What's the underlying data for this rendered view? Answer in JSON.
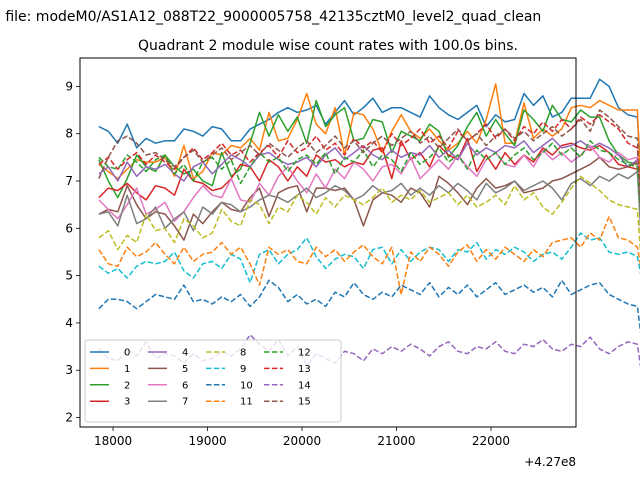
{
  "chart_data": {
    "type": "line",
    "suptitle": "n file: modeM0/AS1A12_088T22_9000005758_42135cztM0_level2_quad_clean",
    "title": "Quadrant 2 module wise count rates with 100.0s bins.",
    "xlabel": "",
    "ylabel": "",
    "x_offset_label": "+4.27e8",
    "xlim": [
      17650,
      22900
    ],
    "ylim": [
      1.8,
      9.6
    ],
    "xticks": [
      18000,
      19000,
      20000,
      21000,
      22000
    ],
    "xtick_labels": [
      "18000",
      "19000",
      "20000",
      "21000",
      "22000"
    ],
    "yticks": [
      2,
      3,
      4,
      5,
      6,
      7,
      8,
      9
    ],
    "ytick_labels": [
      "2",
      "3",
      "4",
      "5",
      "6",
      "7",
      "8",
      "9"
    ],
    "grid": false,
    "legend_placement": "lower-left",
    "legend_columns": 4,
    "x_start": 17850,
    "x_step": 100,
    "series": [
      {
        "name": "0",
        "color": "#1f77b4",
        "dash": "solid",
        "values": [
          8.15,
          8.05,
          7.8,
          8.2,
          7.7,
          7.9,
          7.8,
          7.85,
          7.85,
          8.1,
          8.05,
          7.95,
          8.15,
          8.1,
          7.85,
          7.85,
          8.1,
          8.2,
          8.3,
          8.45,
          8.55,
          8.45,
          8.5,
          8.6,
          8.2,
          8.45,
          8.7,
          8.4,
          8.55,
          8.75,
          8.45,
          8.55,
          8.55,
          8.45,
          8.35,
          8.8,
          8.55,
          8.4,
          8.3,
          8.45,
          8.6,
          8.15,
          8.4,
          8.25,
          8.3,
          8.85,
          8.6,
          8.8,
          8.35,
          8.45,
          8.75,
          8.75,
          8.75,
          9.15,
          9.0,
          8.55,
          8.4,
          8.35,
          5.15
        ]
      },
      {
        "name": "1",
        "color": "#ff7f0e",
        "dash": "solid",
        "values": [
          7.35,
          7.2,
          7.05,
          7.25,
          7.45,
          7.4,
          7.4,
          7.5,
          7.1,
          7.75,
          7.05,
          7.2,
          7.6,
          7.55,
          7.75,
          7.7,
          7.9,
          7.65,
          8.45,
          7.85,
          7.9,
          8.3,
          8.85,
          8.2,
          8.0,
          8.55,
          7.55,
          8.45,
          8.4,
          8.1,
          7.6,
          8.05,
          8.4,
          8.05,
          7.9,
          8.1,
          7.85,
          7.65,
          7.8,
          8.05,
          7.8,
          8.3,
          9.05,
          7.8,
          7.8,
          8.65,
          7.9,
          8.1,
          7.95,
          8.1,
          8.55,
          8.6,
          8.55,
          8.7,
          8.6,
          8.5,
          8.5,
          8.5,
          3.75
        ]
      },
      {
        "name": "2",
        "color": "#2ca02c",
        "dash": "solid",
        "values": [
          7.45,
          7.0,
          6.65,
          7.05,
          7.55,
          7.3,
          7.2,
          7.55,
          7.3,
          7.15,
          7.25,
          7.0,
          6.9,
          7.6,
          7.1,
          7.25,
          7.8,
          8.45,
          7.95,
          8.4,
          8.05,
          8.35,
          7.8,
          8.7,
          8.15,
          8.4,
          8.55,
          7.85,
          7.9,
          8.3,
          8.25,
          7.6,
          8.05,
          7.95,
          7.85,
          8.2,
          8.05,
          7.5,
          7.75,
          8.15,
          8.45,
          7.95,
          8.3,
          8.0,
          7.75,
          8.5,
          8.3,
          8.05,
          8.6,
          8.3,
          8.25,
          8.5,
          8.35,
          8.35,
          7.85,
          7.55,
          7.4,
          7.35,
          4.5
        ]
      },
      {
        "name": "3",
        "color": "#d62728",
        "dash": "solid",
        "values": [
          6.65,
          6.85,
          6.8,
          6.95,
          6.75,
          6.6,
          6.9,
          6.85,
          6.7,
          7.25,
          7.0,
          6.95,
          6.8,
          6.85,
          7.05,
          7.35,
          7.3,
          7.0,
          7.45,
          7.3,
          7.0,
          7.3,
          7.1,
          7.55,
          7.4,
          7.45,
          7.3,
          7.4,
          7.35,
          7.65,
          7.7,
          7.05,
          7.85,
          7.45,
          7.6,
          7.3,
          7.75,
          7.55,
          7.45,
          7.9,
          7.2,
          7.55,
          7.25,
          7.6,
          7.35,
          7.55,
          7.4,
          7.7,
          7.55,
          7.75,
          7.8,
          7.7,
          7.65,
          7.75,
          7.6,
          7.35,
          7.3,
          7.25,
          4.3
        ]
      },
      {
        "name": "4",
        "color": "#9467bd",
        "dash": "solid",
        "values": [
          7.15,
          7.3,
          7.0,
          7.4,
          7.1,
          7.3,
          7.25,
          7.35,
          7.15,
          7.0,
          7.3,
          7.4,
          7.15,
          7.35,
          7.55,
          7.45,
          7.3,
          7.55,
          7.6,
          7.45,
          7.35,
          7.4,
          7.5,
          7.3,
          7.55,
          7.7,
          7.45,
          7.6,
          7.75,
          7.55,
          7.45,
          7.65,
          7.5,
          7.6,
          7.55,
          7.75,
          7.5,
          7.65,
          7.45,
          7.8,
          7.55,
          7.7,
          7.6,
          7.75,
          7.7,
          7.85,
          7.6,
          7.75,
          7.9,
          7.7,
          7.75,
          7.85,
          7.7,
          7.8,
          7.7,
          7.55,
          7.3,
          7.45,
          4.55
        ]
      },
      {
        "name": "5",
        "color": "#8c564b",
        "dash": "solid",
        "values": [
          6.3,
          6.4,
          6.35,
          6.9,
          6.5,
          6.2,
          6.35,
          6.3,
          6.05,
          5.75,
          6.3,
          6.1,
          6.35,
          6.55,
          6.4,
          6.35,
          6.65,
          6.85,
          6.25,
          6.75,
          6.85,
          6.9,
          6.35,
          6.85,
          6.85,
          6.8,
          6.85,
          6.6,
          6.05,
          6.6,
          6.75,
          6.7,
          6.55,
          6.85,
          6.75,
          6.45,
          7.1,
          6.95,
          6.75,
          6.5,
          6.85,
          7.05,
          6.85,
          6.9,
          7.0,
          6.75,
          6.8,
          6.85,
          7.0,
          7.05,
          7.15,
          7.25,
          7.35,
          7.5,
          7.3,
          7.25,
          7.3,
          7.4,
          4.4
        ]
      },
      {
        "name": "6",
        "color": "#e377c2",
        "dash": "solid",
        "values": [
          6.6,
          6.4,
          6.2,
          6.5,
          6.85,
          6.3,
          6.4,
          6.55,
          6.15,
          6.35,
          6.65,
          6.9,
          6.7,
          6.65,
          7.05,
          6.6,
          6.55,
          6.95,
          6.7,
          7.1,
          7.3,
          7.0,
          6.75,
          7.15,
          6.85,
          7.25,
          7.05,
          7.4,
          7.25,
          7.0,
          7.3,
          7.35,
          7.15,
          7.5,
          7.05,
          7.25,
          7.45,
          7.25,
          7.55,
          7.3,
          7.1,
          7.45,
          7.6,
          7.35,
          7.3,
          7.55,
          7.3,
          7.65,
          7.45,
          7.6,
          7.4,
          7.55,
          7.75,
          7.5,
          7.4,
          7.6,
          7.45,
          7.5,
          4.7
        ]
      },
      {
        "name": "7",
        "color": "#7f7f7f",
        "dash": "solid",
        "values": [
          6.3,
          6.35,
          6.05,
          6.7,
          6.1,
          6.2,
          6.45,
          6.0,
          6.2,
          6.35,
          5.95,
          6.45,
          6.3,
          6.55,
          6.5,
          6.35,
          6.45,
          6.6,
          6.7,
          6.65,
          6.55,
          6.7,
          6.85,
          6.65,
          6.75,
          6.9,
          6.8,
          6.6,
          6.7,
          6.9,
          6.75,
          6.8,
          6.95,
          6.7,
          6.85,
          6.7,
          6.9,
          6.75,
          6.95,
          6.8,
          6.6,
          6.95,
          6.75,
          6.85,
          7.0,
          6.8,
          6.9,
          7.0,
          6.85,
          6.6,
          6.95,
          7.05,
          6.9,
          7.1,
          7.0,
          7.15,
          7.05,
          7.2,
          3.55
        ]
      },
      {
        "name": "8",
        "color": "#bcbd22",
        "dash": "dashed",
        "values": [
          5.8,
          5.95,
          5.55,
          5.85,
          5.7,
          6.3,
          5.95,
          6.0,
          5.7,
          6.2,
          6.05,
          5.8,
          5.9,
          6.4,
          6.15,
          6.05,
          6.6,
          6.5,
          6.1,
          6.45,
          6.35,
          6.7,
          6.55,
          6.3,
          6.65,
          6.45,
          6.7,
          6.6,
          6.5,
          6.65,
          6.85,
          6.55,
          6.7,
          6.6,
          6.8,
          6.55,
          6.65,
          6.75,
          6.5,
          6.7,
          6.45,
          6.55,
          6.7,
          6.5,
          6.9,
          6.6,
          6.75,
          6.45,
          6.3,
          6.55,
          6.85,
          7.1,
          6.95,
          6.8,
          6.6,
          6.5,
          6.45,
          6.4,
          3.7
        ]
      },
      {
        "name": "9",
        "color": "#17becf",
        "dash": "dashed",
        "values": [
          5.2,
          5.05,
          5.15,
          4.95,
          5.2,
          5.3,
          5.25,
          5.3,
          5.5,
          5.1,
          4.95,
          5.25,
          5.3,
          5.15,
          5.45,
          5.35,
          4.85,
          5.45,
          5.55,
          5.25,
          5.45,
          5.55,
          5.8,
          5.4,
          5.15,
          5.35,
          5.45,
          5.4,
          5.15,
          5.55,
          5.6,
          5.25,
          5.55,
          5.3,
          5.5,
          5.6,
          5.55,
          5.3,
          5.55,
          5.5,
          5.7,
          5.35,
          5.55,
          5.45,
          5.6,
          5.5,
          5.3,
          5.45,
          5.5,
          5.35,
          5.6,
          5.9,
          5.75,
          5.8,
          5.5,
          5.45,
          5.5,
          5.4,
          4.35
        ]
      },
      {
        "name": "10",
        "color": "#1f77b4",
        "dash": "dashed",
        "values": [
          4.3,
          4.5,
          4.5,
          4.45,
          4.3,
          4.45,
          4.6,
          4.55,
          4.5,
          4.8,
          4.45,
          4.5,
          4.4,
          4.55,
          4.45,
          4.6,
          4.35,
          4.55,
          4.9,
          4.75,
          4.45,
          4.6,
          4.4,
          4.5,
          4.35,
          4.65,
          4.55,
          4.85,
          4.6,
          4.5,
          4.65,
          4.55,
          4.8,
          4.7,
          4.6,
          4.85,
          4.55,
          4.75,
          4.6,
          4.8,
          4.55,
          4.7,
          4.85,
          4.6,
          4.7,
          4.8,
          4.65,
          4.75,
          4.55,
          4.9,
          4.6,
          4.7,
          4.8,
          4.85,
          4.6,
          4.5,
          4.4,
          4.35,
          2.75
        ]
      },
      {
        "name": "11",
        "color": "#ff7f0e",
        "dash": "dashed",
        "values": [
          5.55,
          5.25,
          5.2,
          5.6,
          5.4,
          5.5,
          5.7,
          5.45,
          5.25,
          5.6,
          5.3,
          5.45,
          5.5,
          5.7,
          5.45,
          5.6,
          5.25,
          4.8,
          5.6,
          5.45,
          5.55,
          5.3,
          5.25,
          5.6,
          5.4,
          5.55,
          5.3,
          5.5,
          5.65,
          5.4,
          5.25,
          5.6,
          4.6,
          5.5,
          5.3,
          5.6,
          5.45,
          5.2,
          5.5,
          5.65,
          5.3,
          5.55,
          5.35,
          5.6,
          5.45,
          5.3,
          5.55,
          5.4,
          5.7,
          5.75,
          5.8,
          5.6,
          5.9,
          5.75,
          6.25,
          5.8,
          5.75,
          5.6,
          4.45
        ]
      },
      {
        "name": "12",
        "color": "#2ca02c",
        "dash": "dashed",
        "values": [
          7.5,
          7.3,
          7.25,
          7.55,
          7.4,
          7.2,
          7.45,
          7.55,
          7.15,
          7.35,
          7.0,
          7.4,
          7.5,
          7.25,
          7.45,
          6.95,
          7.3,
          7.6,
          7.4,
          7.5,
          7.2,
          7.45,
          7.55,
          7.35,
          7.6,
          7.15,
          7.5,
          7.4,
          7.65,
          7.3,
          7.55,
          7.45,
          7.2,
          7.6,
          7.35,
          7.5,
          7.7,
          7.4,
          7.55,
          7.25,
          7.65,
          7.45,
          7.6,
          7.35,
          7.55,
          7.7,
          7.45,
          7.6,
          7.8,
          7.55,
          7.7,
          7.5,
          7.85,
          7.65,
          7.6,
          7.45,
          7.35,
          7.3,
          4.6
        ]
      },
      {
        "name": "13",
        "color": "#d62728",
        "dash": "dashed",
        "values": [
          7.35,
          7.5,
          7.25,
          7.45,
          7.6,
          7.35,
          7.55,
          7.4,
          7.25,
          7.5,
          7.7,
          7.45,
          7.6,
          7.8,
          7.55,
          7.65,
          7.4,
          7.6,
          7.75,
          7.5,
          7.85,
          7.6,
          7.7,
          7.95,
          7.65,
          7.8,
          7.55,
          7.9,
          7.7,
          7.85,
          7.6,
          8.0,
          7.75,
          7.9,
          8.1,
          7.8,
          7.95,
          7.7,
          8.05,
          7.85,
          8.0,
          8.2,
          7.9,
          8.1,
          7.85,
          8.15,
          8.0,
          8.25,
          8.05,
          8.3,
          8.1,
          8.35,
          8.2,
          8.4,
          8.25,
          8.1,
          7.8,
          7.7,
          4.8
        ]
      },
      {
        "name": "14",
        "color": "#9467bd",
        "dash": "dashed",
        "values": [
          3.45,
          3.25,
          3.2,
          3.45,
          3.3,
          3.6,
          3.25,
          3.35,
          3.3,
          3.15,
          3.35,
          3.2,
          3.25,
          3.4,
          3.3,
          3.45,
          3.75,
          3.55,
          3.4,
          3.65,
          3.3,
          3.5,
          3.1,
          3.35,
          3.25,
          3.15,
          3.4,
          3.35,
          3.2,
          3.45,
          3.35,
          3.5,
          3.4,
          3.55,
          3.45,
          3.3,
          3.5,
          3.6,
          3.4,
          3.35,
          3.5,
          3.45,
          3.6,
          3.4,
          3.35,
          3.55,
          3.5,
          3.65,
          3.45,
          3.4,
          3.55,
          3.5,
          3.7,
          3.45,
          3.35,
          3.5,
          3.6,
          3.55,
          2.15
        ]
      },
      {
        "name": "15",
        "color": "#8c564b",
        "dash": "dashed",
        "values": [
          7.05,
          7.5,
          7.85,
          7.95,
          7.8,
          7.55,
          7.6,
          7.45,
          7.3,
          7.5,
          7.65,
          7.4,
          7.55,
          7.7,
          7.45,
          7.6,
          7.75,
          7.55,
          7.8,
          7.65,
          7.5,
          7.7,
          7.85,
          7.6,
          7.75,
          7.95,
          7.7,
          7.85,
          7.6,
          7.8,
          7.95,
          7.75,
          7.9,
          8.05,
          7.8,
          7.95,
          7.7,
          7.9,
          8.1,
          7.85,
          8.0,
          7.75,
          7.95,
          8.1,
          7.9,
          8.05,
          7.85,
          8.0,
          8.15,
          7.95,
          8.1,
          8.3,
          8.05,
          8.5,
          8.35,
          8.15,
          7.95,
          7.9,
          3.65
        ]
      }
    ]
  }
}
